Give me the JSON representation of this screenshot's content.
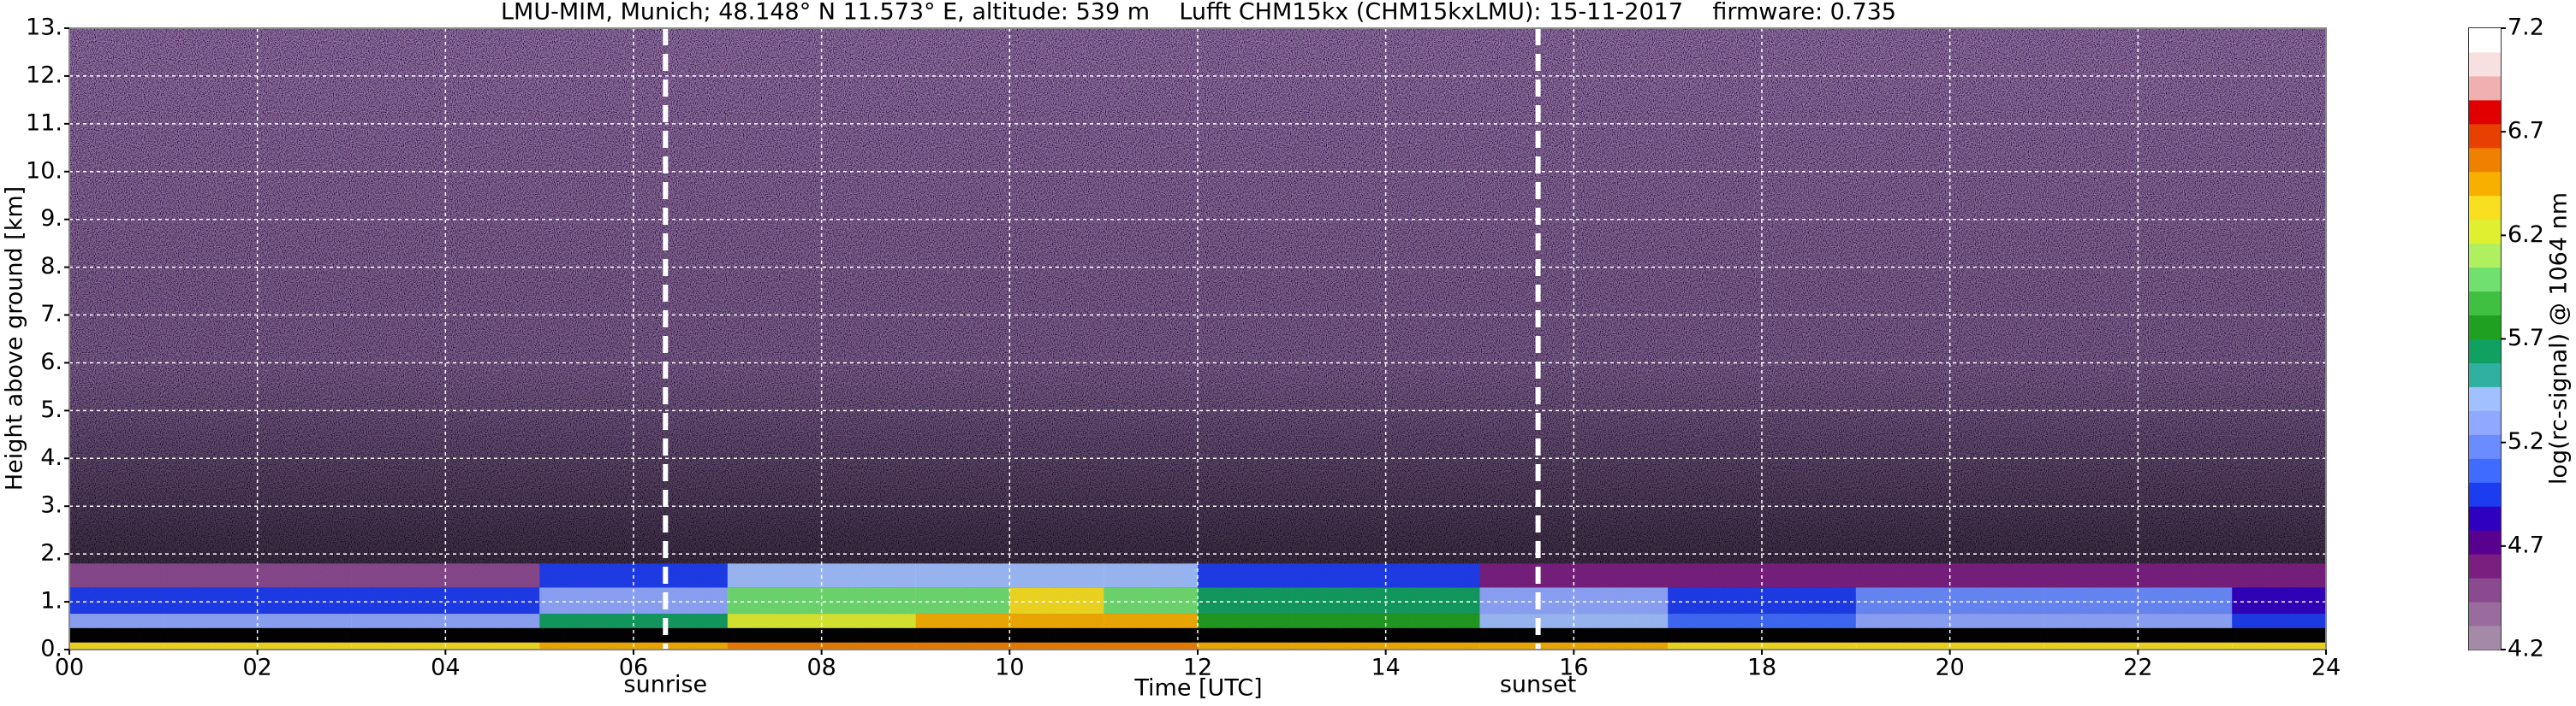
{
  "chart_data": {
    "type": "heatmap",
    "title": "LMU-MIM, Munich; 48.148° N 11.573° E, altitude: 539 m    Lufft CHM15kx (CHM15kxLMU): 15-11-2017    firmware: 0.735",
    "x_label": "Time [UTC]",
    "y_label": "Height above ground [km]",
    "xlim": [
      0,
      24
    ],
    "ylim": [
      0,
      13
    ],
    "xticks": [
      {
        "value": 0,
        "label": "00"
      },
      {
        "value": 2,
        "label": "02"
      },
      {
        "value": 4,
        "label": "04"
      },
      {
        "value": 6,
        "label": "06"
      },
      {
        "value": 8,
        "label": "08"
      },
      {
        "value": 10,
        "label": "10"
      },
      {
        "value": 12,
        "label": "12"
      },
      {
        "value": 14,
        "label": "14"
      },
      {
        "value": 16,
        "label": "16"
      },
      {
        "value": 18,
        "label": "18"
      },
      {
        "value": 20,
        "label": "20"
      },
      {
        "value": 22,
        "label": "22"
      },
      {
        "value": 24,
        "label": "24"
      }
    ],
    "yticks": [
      {
        "value": 0,
        "label": "0."
      },
      {
        "value": 1,
        "label": "1."
      },
      {
        "value": 2,
        "label": "2."
      },
      {
        "value": 3,
        "label": "3."
      },
      {
        "value": 4,
        "label": "4."
      },
      {
        "value": 5,
        "label": "5."
      },
      {
        "value": 6,
        "label": "6."
      },
      {
        "value": 7,
        "label": "7."
      },
      {
        "value": 8,
        "label": "8."
      },
      {
        "value": 9,
        "label": "9."
      },
      {
        "value": 10,
        "label": "10."
      },
      {
        "value": 11,
        "label": "11."
      },
      {
        "value": 12,
        "label": "12."
      },
      {
        "value": 13,
        "label": "13."
      }
    ],
    "grid": true,
    "x_edges": [
      0,
      1,
      2,
      3,
      4,
      5,
      6,
      7,
      8,
      9,
      10,
      11,
      12,
      13,
      14,
      15,
      16,
      17,
      18,
      19,
      20,
      21,
      22,
      23,
      24
    ],
    "y_edges": [
      0,
      0.15,
      0.45,
      0.75,
      1.3,
      1.8
    ],
    "z": [
      [
        6.3,
        6.3,
        6.3,
        6.3,
        6.3,
        6.4,
        6.5,
        6.6,
        6.6,
        6.6,
        6.6,
        6.6,
        6.5,
        6.5,
        6.5,
        6.5,
        6.4,
        6.3,
        6.3,
        6.3,
        6.3,
        6.3,
        6.3,
        6.3
      ],
      [
        null,
        null,
        null,
        null,
        null,
        null,
        null,
        null,
        null,
        null,
        null,
        null,
        null,
        null,
        null,
        null,
        null,
        null,
        null,
        null,
        null,
        null,
        null,
        null
      ],
      [
        5.3,
        5.3,
        5.3,
        5.3,
        5.3,
        5.6,
        5.6,
        6.2,
        6.2,
        6.5,
        6.5,
        6.5,
        5.8,
        5.8,
        5.8,
        5.4,
        5.4,
        5.1,
        5.1,
        5.3,
        5.3,
        5.3,
        5.3,
        5.0
      ],
      [
        4.9,
        4.9,
        4.9,
        4.9,
        4.9,
        5.3,
        5.3,
        6.0,
        6.0,
        6.0,
        6.3,
        6.0,
        5.6,
        5.6,
        5.6,
        5.3,
        5.3,
        4.9,
        4.9,
        5.2,
        5.2,
        5.2,
        5.2,
        4.8
      ],
      [
        4.5,
        4.5,
        4.5,
        4.5,
        4.5,
        4.9,
        4.9,
        5.4,
        5.4,
        5.4,
        5.4,
        5.4,
        5.0,
        5.0,
        5.0,
        4.6,
        4.6,
        4.6,
        4.6,
        4.6,
        4.6,
        4.6,
        4.6,
        4.6
      ]
    ],
    "nan_color": "#000000",
    "colorbar_label": "log(rc-signal) @ 1064 nm",
    "clim": [
      4.2,
      7.2
    ],
    "cticks": [
      4.2,
      4.7,
      5.2,
      5.7,
      6.2,
      6.7,
      7.2
    ],
    "colors": [
      "#a58aa8",
      "#9a6c9e",
      "#8a4a8f",
      "#7a1e80",
      "#5a0090",
      "#3000c0",
      "#1c3cf0",
      "#3f6cff",
      "#6a8cff",
      "#90a8ff",
      "#a0c0ff",
      "#30b0a0",
      "#10a060",
      "#20a020",
      "#40c040",
      "#70e070",
      "#b0f060",
      "#e0f030",
      "#f8e020",
      "#f8b000",
      "#f08000",
      "#e84000",
      "#e00000",
      "#f0b0b0",
      "#f8e0e0",
      "#ffffff"
    ],
    "annotations": [
      {
        "text": "sunrise",
        "x": 6.34
      },
      {
        "text": "sunset",
        "x": 15.62
      }
    ]
  }
}
